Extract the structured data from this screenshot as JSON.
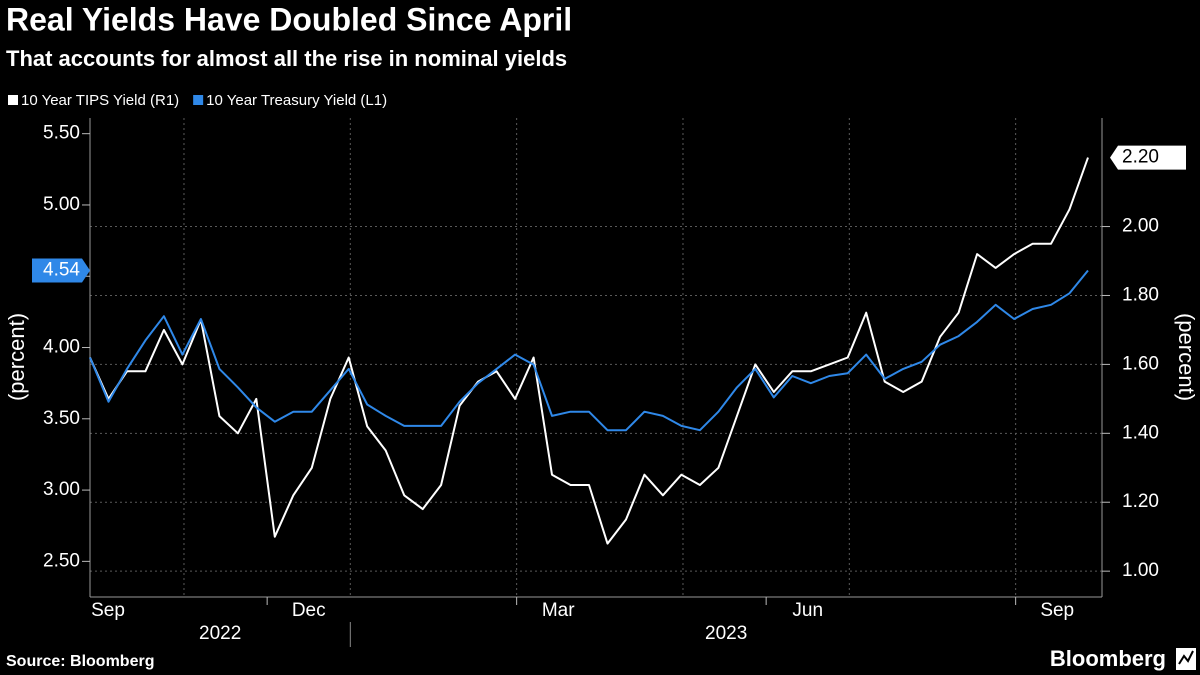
{
  "chart_data": {
    "type": "line",
    "title": "Real Yields Have Doubled Since April",
    "subtitle": "That accounts for almost all the rise in nominal yields",
    "source": "Source: Bloomberg",
    "brand": "Bloomberg",
    "ylabel": "(percent)",
    "y2label": "(percent)",
    "xlim": [
      "2022-09",
      "2023-09"
    ],
    "xticks": [
      {
        "value": "2022-09",
        "label": "Sep"
      },
      {
        "value": "2022-12",
        "label": "Dec"
      },
      {
        "value": "2023-03",
        "label": "Mar"
      },
      {
        "value": "2023-06",
        "label": "Jun"
      },
      {
        "value": "2023-09",
        "label": "Sep"
      }
    ],
    "xgrid": [
      "2022-11",
      "2023-01",
      "2023-03",
      "2023-05",
      "2023-07",
      "2023-09"
    ],
    "x_year_labels": [
      "2022",
      "2023"
    ],
    "ylim": [
      2.25,
      5.61
    ],
    "yticks": [
      {
        "value": 2.5,
        "label": "2.50"
      },
      {
        "value": 3,
        "label": "3.00"
      },
      {
        "value": 3.5,
        "label": "3.50"
      },
      {
        "value": 4,
        "label": "4.00"
      },
      {
        "value": 4.5,
        "label": "4.50"
      },
      {
        "value": 5,
        "label": "5.00"
      },
      {
        "value": 5.5,
        "label": "5.50"
      }
    ],
    "y2lim": [
      0.925,
      2.315
    ],
    "y2ticks": [
      {
        "value": 1,
        "label": "1.00"
      },
      {
        "value": 1.2,
        "label": "1.20"
      },
      {
        "value": 1.4,
        "label": "1.40"
      },
      {
        "value": 1.6,
        "label": "1.60"
      },
      {
        "value": 1.8,
        "label": "1.80"
      },
      {
        "value": 2,
        "label": "2.00"
      }
    ],
    "grid": true,
    "legend": "top-left",
    "series": [
      {
        "name": "10 Year TIPS Yield (R1)",
        "color": "#ffffff",
        "axis": "y2",
        "last_label": "2.20",
        "values": [
          1.62,
          1.5,
          1.58,
          1.58,
          1.7,
          1.6,
          1.73,
          1.45,
          1.4,
          1.5,
          1.1,
          1.22,
          1.3,
          1.5,
          1.62,
          1.42,
          1.35,
          1.22,
          1.18,
          1.25,
          1.48,
          1.55,
          1.58,
          1.5,
          1.62,
          1.28,
          1.25,
          1.25,
          1.08,
          1.15,
          1.28,
          1.22,
          1.28,
          1.25,
          1.3,
          1.45,
          1.6,
          1.52,
          1.58,
          1.58,
          1.6,
          1.62,
          1.75,
          1.55,
          1.52,
          1.55,
          1.68,
          1.75,
          1.92,
          1.88,
          1.92,
          1.95,
          1.95,
          2.05,
          2.2
        ]
      },
      {
        "name": "10 Year Treasury Yield (L1)",
        "color": "#2f88e8",
        "axis": "y",
        "last_label": "4.54",
        "values": [
          3.93,
          3.62,
          3.85,
          4.05,
          4.22,
          3.95,
          4.2,
          3.85,
          3.72,
          3.58,
          3.48,
          3.55,
          3.55,
          3.7,
          3.85,
          3.6,
          3.52,
          3.45,
          3.45,
          3.45,
          3.62,
          3.75,
          3.85,
          3.95,
          3.88,
          3.52,
          3.55,
          3.55,
          3.42,
          3.42,
          3.55,
          3.52,
          3.45,
          3.42,
          3.55,
          3.72,
          3.85,
          3.65,
          3.8,
          3.75,
          3.8,
          3.82,
          3.95,
          3.78,
          3.85,
          3.9,
          4.02,
          4.08,
          4.18,
          4.3,
          4.2,
          4.27,
          4.3,
          4.38,
          4.54
        ]
      }
    ]
  }
}
